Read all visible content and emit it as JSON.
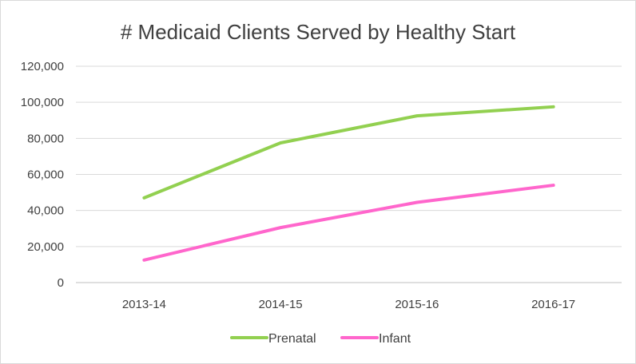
{
  "chart_data": {
    "type": "line",
    "title": "# Medicaid Clients Served by Healthy Start",
    "categories": [
      "2013-14",
      "2014-15",
      "2015-16",
      "2016-17"
    ],
    "y_ticks": [
      "0",
      "20,000",
      "40,000",
      "60,000",
      "80,000",
      "100,000",
      "120,000"
    ],
    "ylim": [
      0,
      120000
    ],
    "grid": true,
    "legend_position": "bottom",
    "series": [
      {
        "name": "Prenatal",
        "color": "#92d050",
        "values": [
          47000,
          77500,
          92500,
          97500
        ]
      },
      {
        "name": "Infant",
        "color": "#ff66cc",
        "values": [
          12500,
          30500,
          44500,
          54000
        ]
      }
    ]
  }
}
